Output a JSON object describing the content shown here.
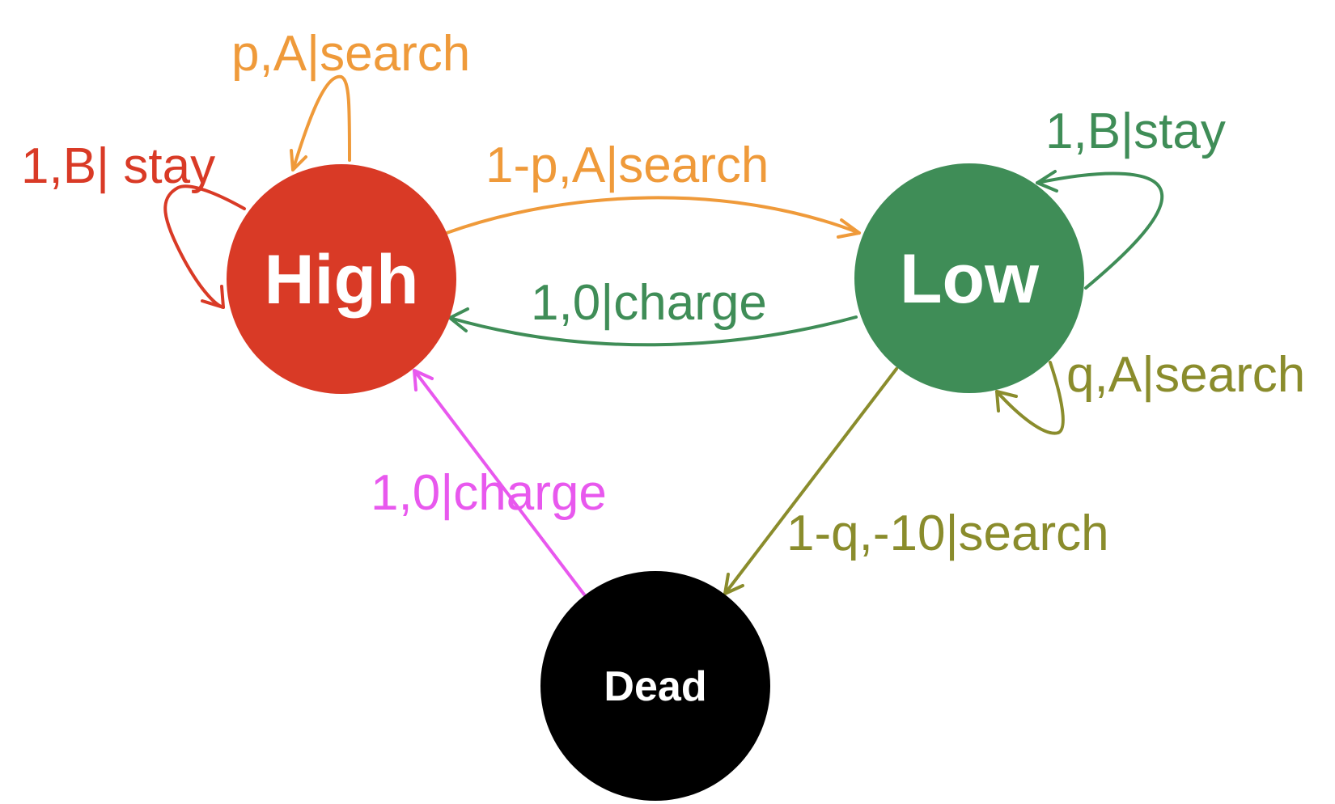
{
  "states": {
    "high": {
      "label": "High",
      "color": "#D93A26"
    },
    "low": {
      "label": "Low",
      "color": "#3F8D57"
    },
    "dead": {
      "label": "Dead",
      "color": "#000000"
    }
  },
  "transitions": {
    "high_self_search": {
      "label": "p,A|search",
      "color": "#EF9A3A"
    },
    "high_self_stay": {
      "label": "1,B| stay",
      "color": "#D93A26"
    },
    "high_to_low": {
      "label": "1-p,A|search",
      "color": "#EF9A3A"
    },
    "low_to_high": {
      "label": "1,0|charge",
      "color": "#3F8D57"
    },
    "low_self_stay": {
      "label": "1,B|stay",
      "color": "#3F8D57"
    },
    "low_self_search": {
      "label": "q,A|search",
      "color": "#8A8C2C"
    },
    "low_to_dead": {
      "label": "1-q,-10|search",
      "color": "#8A8C2C"
    },
    "dead_to_high": {
      "label": "1,0|charge",
      "color": "#E858EE"
    }
  }
}
